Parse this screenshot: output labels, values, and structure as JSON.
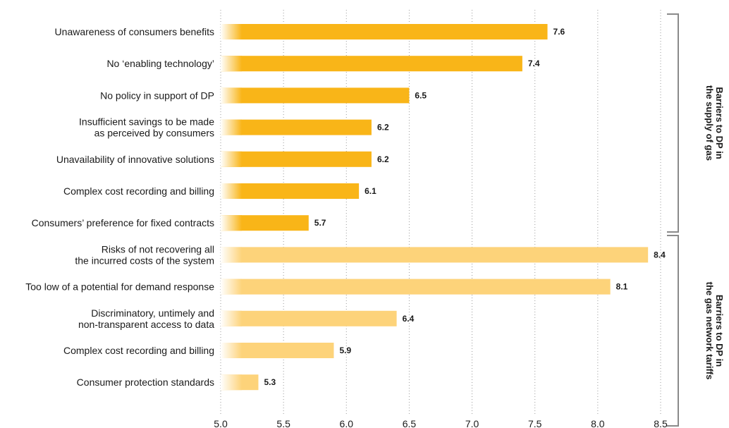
{
  "chart_data": {
    "type": "bar",
    "orientation": "horizontal",
    "xlim": [
      5.0,
      8.5
    ],
    "xticks": [
      "5.0",
      "5.5",
      "6.0",
      "6.5",
      "7.0",
      "7.5",
      "8.0",
      "8.5"
    ],
    "grid": true,
    "colors": {
      "group1": "#f9b518",
      "group2": "#fdd37a"
    },
    "groups": [
      {
        "label": [
          "Barriers to DP in",
          "the supply of gas"
        ],
        "bars": [
          {
            "label": [
              "Unawareness of consumers benefits"
            ],
            "value": 7.6,
            "value_label": "7.6"
          },
          {
            "label": [
              "No ‘enabling technology’"
            ],
            "value": 7.4,
            "value_label": "7.4"
          },
          {
            "label": [
              "No policy in support of DP"
            ],
            "value": 6.5,
            "value_label": "6.5"
          },
          {
            "label": [
              "Insufficient savings to be made",
              "as perceived by consumers"
            ],
            "value": 6.2,
            "value_label": "6.2"
          },
          {
            "label": [
              "Unavailability of innovative solutions"
            ],
            "value": 6.2,
            "value_label": "6.2"
          },
          {
            "label": [
              "Complex cost recording and billing"
            ],
            "value": 6.1,
            "value_label": "6.1"
          },
          {
            "label": [
              "Consumers’ preference for fixed contracts"
            ],
            "value": 5.7,
            "value_label": "5.7"
          }
        ]
      },
      {
        "label": [
          "Barriers to DP in",
          "the gas network tariffs"
        ],
        "bars": [
          {
            "label": [
              "Risks of not recovering all",
              "the incurred costs of the system"
            ],
            "value": 8.4,
            "value_label": "8.4"
          },
          {
            "label": [
              "Too low of a potential for demand response"
            ],
            "value": 8.1,
            "value_label": "8.1"
          },
          {
            "label": [
              "Discriminatory, untimely and",
              "non-transparent access to data"
            ],
            "value": 6.4,
            "value_label": "6.4"
          },
          {
            "label": [
              "Complex cost recording and billing"
            ],
            "value": 5.9,
            "value_label": "5.9"
          },
          {
            "label": [
              "Consumer protection standards"
            ],
            "value": 5.3,
            "value_label": "5.3"
          }
        ]
      }
    ]
  }
}
